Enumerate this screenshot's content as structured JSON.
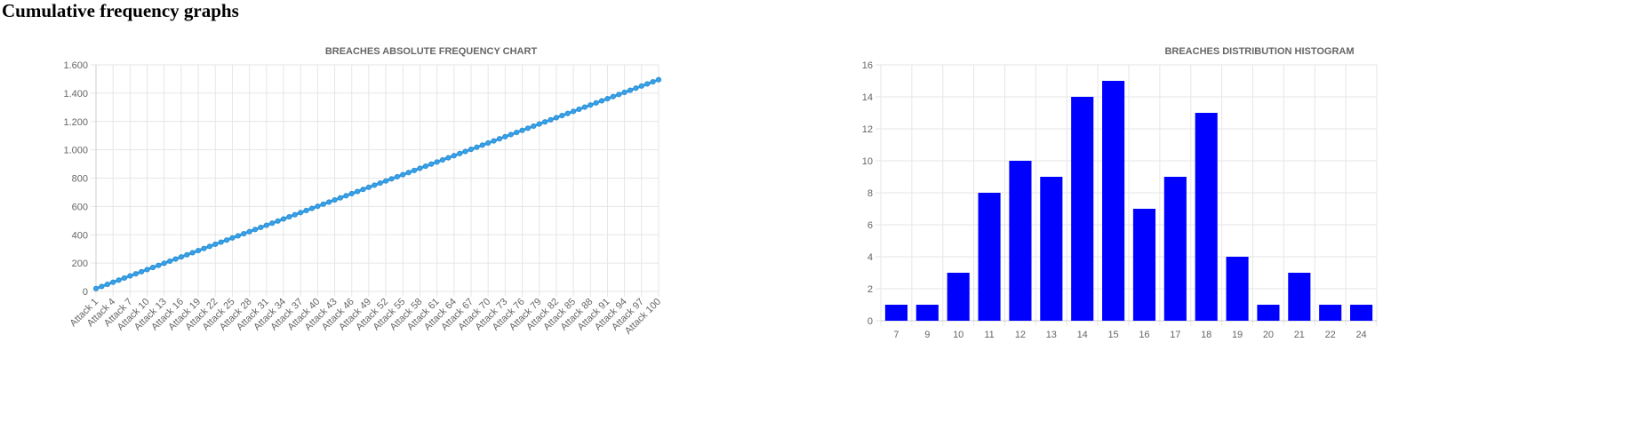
{
  "page": {
    "heading": "Cumulative frequency graphs"
  },
  "chart_data": [
    {
      "type": "line",
      "title": "BREACHES ABSOLUTE FREQUENCY CHART",
      "ylim": [
        0,
        1600
      ],
      "y_ticks": [
        0,
        200,
        400,
        600,
        800,
        1000,
        1200,
        1400,
        1600
      ],
      "y_tick_labels": [
        "0",
        "200",
        "400",
        "600",
        "800",
        "1.000",
        "1.200",
        "1.400",
        "1.600"
      ],
      "x_label_prefix": "Attack",
      "x_count": 100,
      "x_labels_shown": [
        "Attack 1",
        "Attack 4",
        "Attack 7",
        "Attack 10",
        "Attack 13",
        "Attack 16",
        "Attack 19",
        "Attack 22",
        "Attack 25",
        "Attack 28",
        "Attack 31",
        "Attack 34",
        "Attack 37",
        "Attack 40",
        "Attack 43",
        "Attack 46",
        "Attack 49",
        "Attack 52",
        "Attack 55",
        "Attack 58",
        "Attack 61",
        "Attack 64",
        "Attack 67",
        "Attack 70",
        "Attack 73",
        "Attack 76",
        "Attack 79",
        "Attack 82",
        "Attack 85",
        "Attack 88",
        "Attack 91",
        "Attack 94",
        "Attack 97",
        "Attack 100"
      ],
      "y_start": 20,
      "y_end": 1495,
      "grid": true,
      "color": "#36a2eb"
    },
    {
      "type": "bar",
      "title": "BREACHES DISTRIBUTION HISTOGRAM",
      "categories": [
        "7",
        "9",
        "10",
        "11",
        "12",
        "13",
        "14",
        "15",
        "16",
        "17",
        "18",
        "19",
        "20",
        "21",
        "22",
        "24"
      ],
      "values": [
        1,
        1,
        3,
        8,
        10,
        9,
        14,
        15,
        7,
        9,
        13,
        4,
        1,
        3,
        1,
        1
      ],
      "ylim": [
        0,
        16
      ],
      "y_ticks": [
        0,
        2,
        4,
        6,
        8,
        10,
        12,
        14,
        16
      ],
      "grid": true,
      "color": "#0000ff"
    }
  ]
}
